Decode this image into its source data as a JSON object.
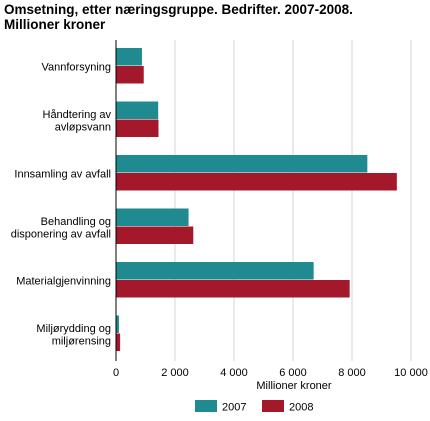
{
  "title_line1": "Omsetning, etter næringsgruppe. Bedrifter. 2007-2008.",
  "title_line2": "Millioner kroner",
  "chart_data": {
    "type": "bar",
    "orientation": "horizontal",
    "title": "Omsetning, etter næringsgruppe. Bedrifter. 2007-2008. Millioner kroner",
    "xlabel": "Millioner kroner",
    "ylabel": "",
    "categories": [
      [
        "Vannforsyning"
      ],
      [
        "Håndtering av",
        "avløpsvann"
      ],
      [
        "Innsamling av avfall"
      ],
      [
        "Behandling og",
        "disponering av avfall"
      ],
      [
        "Materialgjenvinning"
      ],
      [
        "Miljørydding og",
        "miljørensing"
      ]
    ],
    "series": [
      {
        "name": "2007",
        "color": "#1f8a8f",
        "values": [
          880,
          1430,
          8520,
          2460,
          6700,
          100
        ]
      },
      {
        "name": "2008",
        "color": "#a3182a",
        "values": [
          940,
          1440,
          9520,
          2620,
          7920,
          140
        ]
      }
    ],
    "xlim": [
      0,
      10000
    ],
    "ticks": [
      0,
      2000,
      4000,
      6000,
      8000,
      10000
    ],
    "tick_labels": [
      "0",
      "2 000",
      "4 000",
      "6 000",
      "8 000",
      "10 000"
    ],
    "grid": true,
    "legend": "bottom"
  }
}
